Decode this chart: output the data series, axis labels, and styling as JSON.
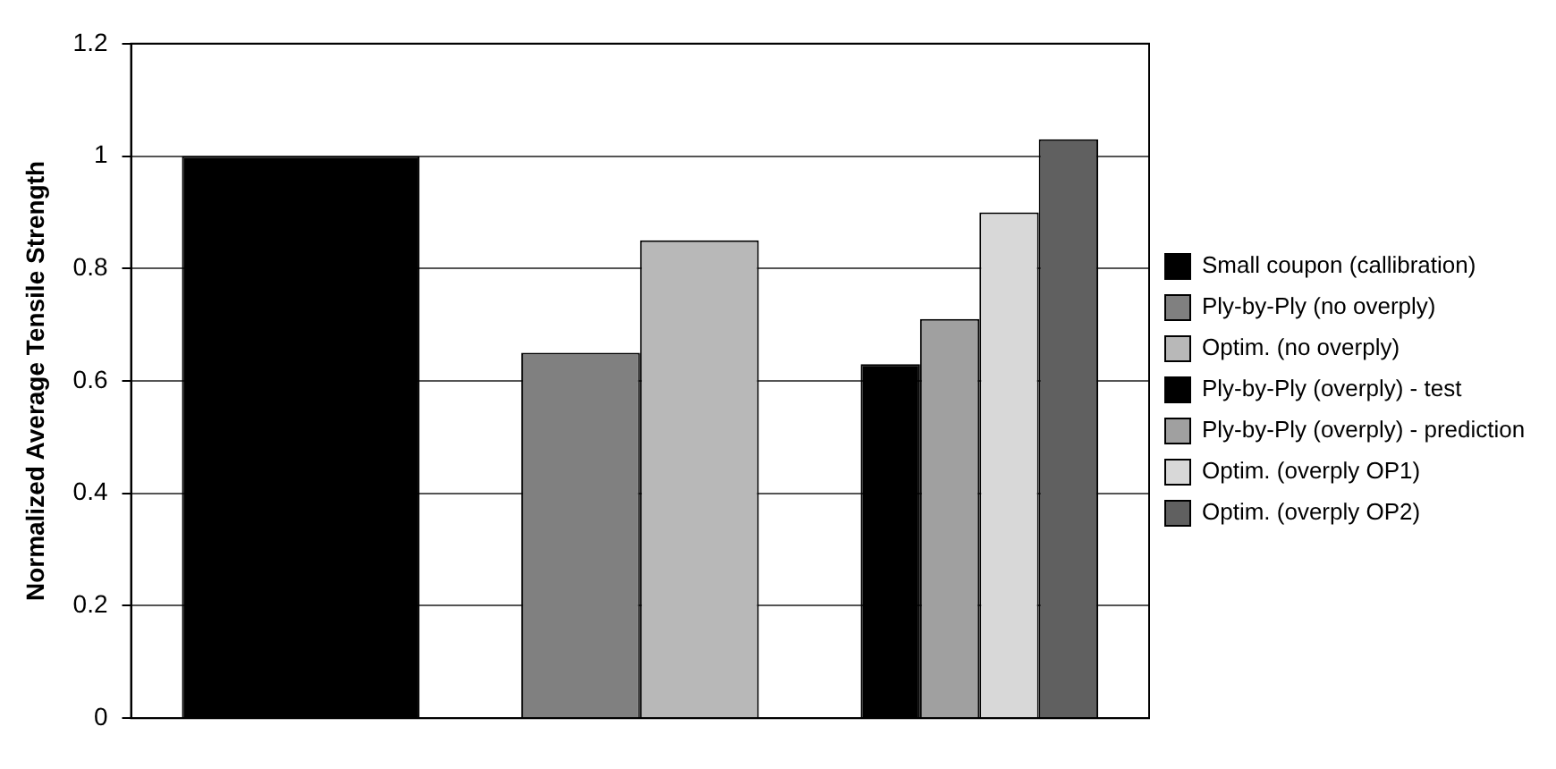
{
  "chart_data": {
    "type": "bar",
    "ylabel": "Normalized Average Tensile Strength",
    "categories": [
      null,
      null,
      null
    ],
    "series": [
      {
        "name": "Small coupon (callibration)",
        "color": "#000000",
        "values": [
          1,
          null,
          null
        ]
      },
      {
        "name": "Ply-by-Ply (no overply)",
        "color": "#808080",
        "values": [
          null,
          0.65,
          null
        ]
      },
      {
        "name": "Optim. (no overply)",
        "color": "#b8b8b8",
        "values": [
          null,
          0.85,
          null
        ]
      },
      {
        "name": "Ply-by-Ply (overply) - test",
        "color": "#000000",
        "values": [
          null,
          null,
          0.63
        ]
      },
      {
        "name": "Ply-by-Ply (overply) - prediction",
        "color": "#a0a0a0",
        "values": [
          null,
          null,
          0.71
        ]
      },
      {
        "name": "Optim. (overply OP1)",
        "color": "#d8d8d8",
        "values": [
          null,
          null,
          0.9
        ]
      },
      {
        "name": "Optim. (overply OP2)",
        "color": "#606060",
        "values": [
          null,
          null,
          1.03
        ]
      }
    ],
    "ylim": [
      0,
      1.2
    ],
    "yticks": [
      0,
      0.2,
      0.4,
      0.6,
      0.8,
      1,
      1.2
    ],
    "grid": "y",
    "legend": "right"
  }
}
